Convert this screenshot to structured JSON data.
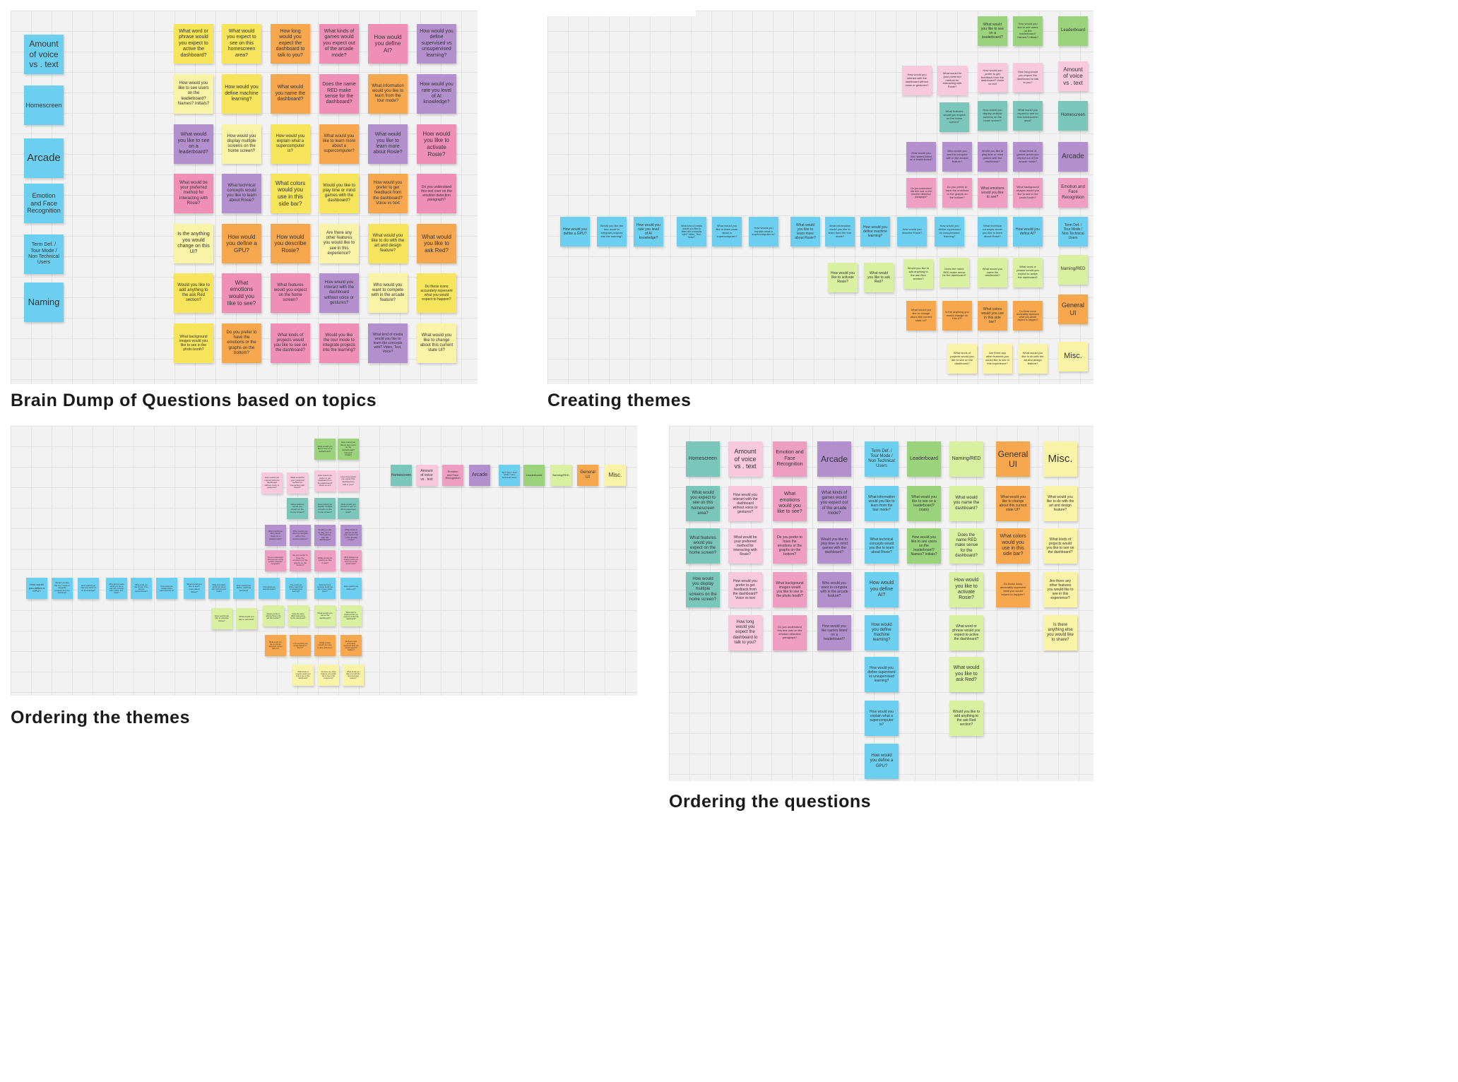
{
  "captions": {
    "p1": "Brain Dump of Questions based on topics",
    "p2": "Creating themes",
    "p3": "Ordering the themes",
    "p4": "Ordering the questions"
  },
  "topics": {
    "amount": "Amount of voice vs . text",
    "homescreen": "Homescreen",
    "arcade": "Arcade",
    "emotion": "Emotion and Face Recognition",
    "term": "Term Def. / Tour Mode / Non Technical Users",
    "naming": "Naming",
    "leaderboard": "Leaderboard",
    "naming_red": "Naming/RED",
    "general": "General UI",
    "misc": "Misc."
  },
  "q": {
    "q1": "What word or phrase would you expect to active the dashboard?",
    "q2": "What would you expect to see on this homescreen area?",
    "q3": "How long would you expect the dashboard to talk to you?",
    "q4": "What kinds of games would you expect out of the arcade mode?",
    "q5": "How would you define AI?",
    "q6": "How would you define supervised vs unsupervised learning?",
    "q7": "How would you like to see users on the leaderboard? Names? Initials?",
    "q8": "How would you define machine learning?",
    "q9": "What would you name the dashboard?",
    "q10": "Does the name RED make sense for the dashboard?",
    "q11": "What information would you like to learn from the tour mode?",
    "q12": "How would you rate you level of AI knowledge?",
    "q13": "What would you like to see on a leaderboard?",
    "q14": "How would you display multiple screens on the home screen?",
    "q15": "How would you explain what a supercomputer is?",
    "q16": "What would you like to learn more about a supercomputer?",
    "q17": "What would you like to learn more about Rosie?",
    "q18": "How would you like to activate Rosie?",
    "q19": "What would be your preferred method for interacting with Rosie?",
    "q20": "What technical concepts would you like to learn about Rosie?",
    "q21": "What colors would you use in this side bar?",
    "q22": "Would you like to play time or mind games with the dashboard?",
    "q23": "How would you prefer to get feedback from the dashboard? Voice vs text",
    "q24": "Do you understand this text over on the emotion detection paragraph?",
    "q25": "Is the anything you would change on this UI?",
    "q26": "How would you define a GPU?",
    "q27": "How would you describe Rosie?",
    "q28": "Are there any other features you would like to see in this experience?",
    "q29": "What would you like to do with the art and design feature?",
    "q30": "What would you like to ask Red?",
    "q31": "Would you like to add anything to the ask Red section?",
    "q32": "What emotions would you like to see?",
    "q33": "What features would you expect on the home screen?",
    "q34": "How would you interact with the dashboard without voice or gestures?",
    "q35": "Who would you want to compete with in the arcade feature?",
    "q36": "Do these icons accurately represent what you would expect to happen?",
    "q37": "What background images would you like to see in the photo booth?",
    "q38": "Do you prefer to have the emotions or the graphs on the bottom?",
    "q39": "What kinds of projects would you like to see on the dashboard?",
    "q40": "Would you like the tour mode to integrate projects into the learning?",
    "q41": "What kind of media would you like to learn the concepts with? Video, Text, Voice?",
    "q42": "What would you like to change about this current state UI?",
    "q43": "How would you like names listed on a leaderboard?",
    "q44": "What would you like to see on a leaderboard? (stats)",
    "q45": "How would you like to see users on the leaderboard? Names? Initials?",
    "q46": "Is there anything else you would like to share?",
    "q47": "What word or phrase would you expect to active the dashboard?",
    "q48": "Who would you want to compete with in the arcade feature?",
    "q49": "How would you like to activate Rosie?",
    "q50": "How would you define supervised vs unsupervised learning?"
  }
}
